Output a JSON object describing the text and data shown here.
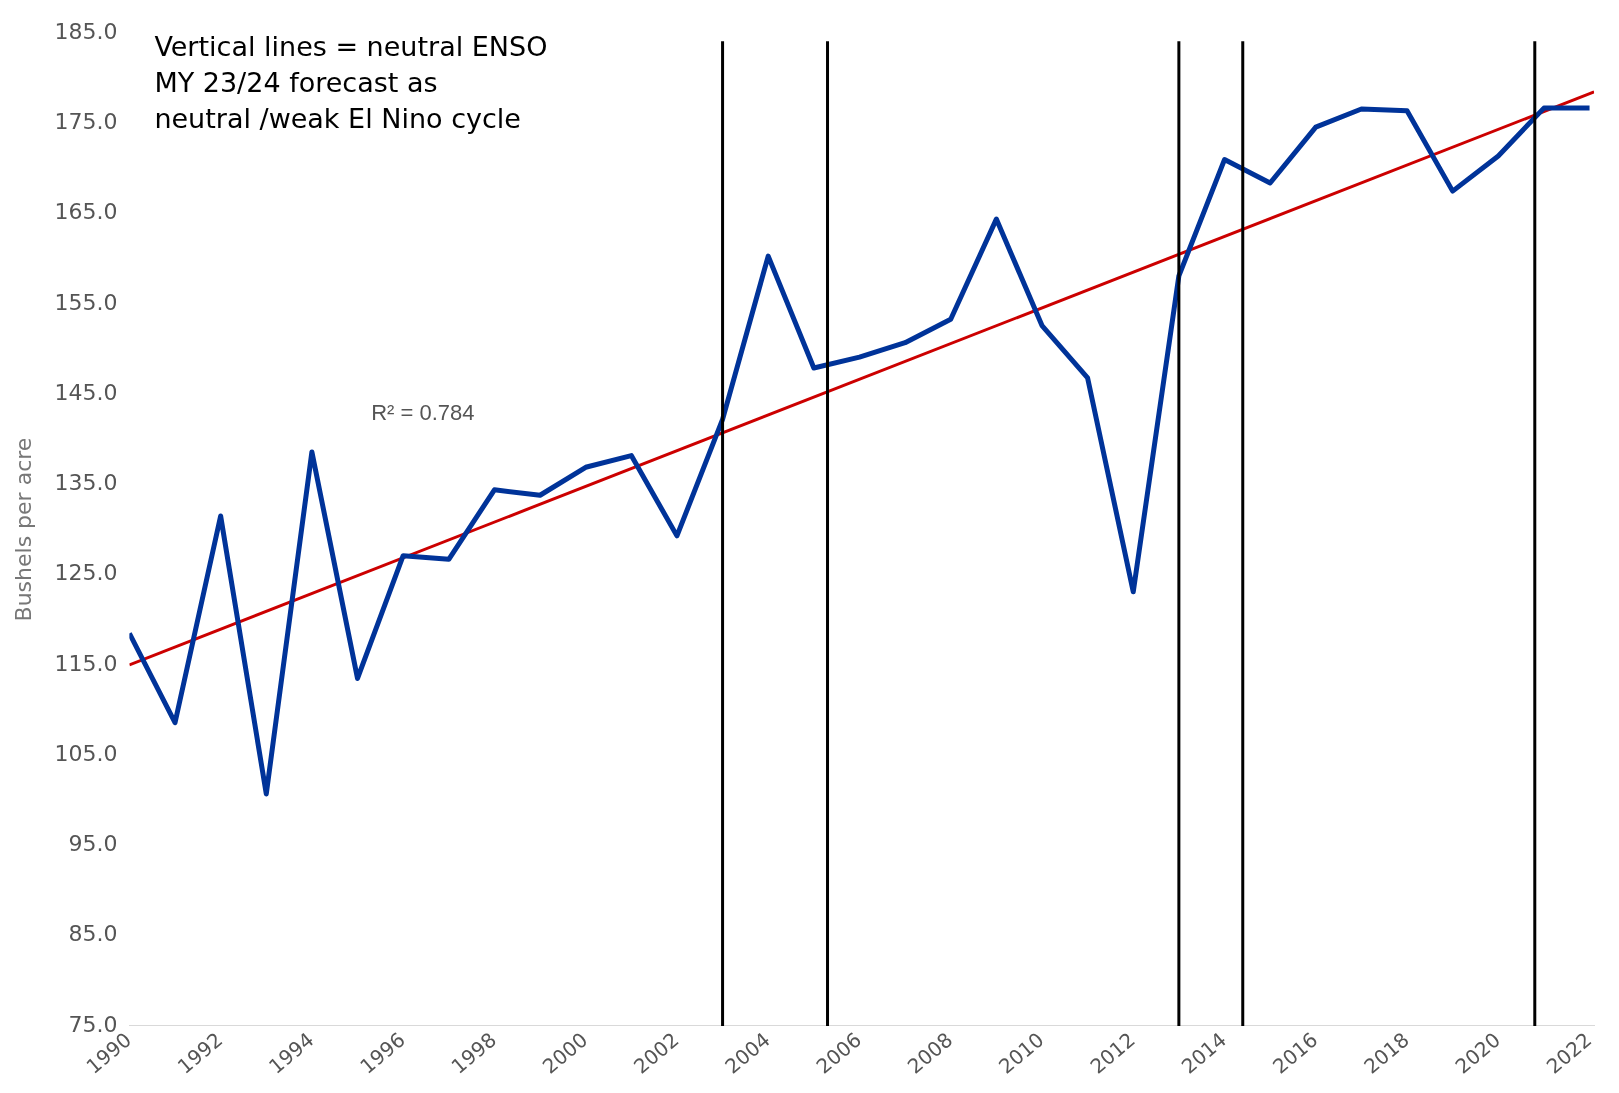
{
  "chart_data": {
    "type": "line",
    "ylabel": "Bushels per acre",
    "x": [
      1990,
      1991,
      1992,
      1993,
      1994,
      1995,
      1996,
      1997,
      1998,
      1999,
      2000,
      2001,
      2002,
      2003,
      2004,
      2005,
      2006,
      2007,
      2008,
      2009,
      2010,
      2011,
      2012,
      2013,
      2014,
      2015,
      2016,
      2017,
      2018,
      2019,
      2020,
      2021,
      2022
    ],
    "series": [
      {
        "color": "#003399",
        "values": [
          118.5,
          108.6,
          131.5,
          100.7,
          138.6,
          113.5,
          127.1,
          126.7,
          134.4,
          133.8,
          136.9,
          138.2,
          129.3,
          142.2,
          160.3,
          147.9,
          149.1,
          150.7,
          153.3,
          164.4,
          152.6,
          146.8,
          123.1,
          158.1,
          171.0,
          168.4,
          174.6,
          176.6,
          176.4,
          167.5,
          171.4,
          176.7,
          176.7
        ]
      },
      {
        "type": "line",
        "color": "#cc0000",
        "x": [
          1990,
          2022.1
        ],
        "values": [
          115,
          178.5
        ]
      }
    ],
    "xlim": [
      1990,
      2022.1
    ],
    "xticks": [
      1990,
      1992,
      1994,
      1996,
      1998,
      2000,
      2002,
      2004,
      2006,
      2008,
      2010,
      2012,
      2014,
      2016,
      2018,
      2020,
      2022
    ],
    "ylim": [
      75,
      185
    ],
    "yticks": [
      {
        "value": 75,
        "label": "75.0"
      },
      {
        "value": 85,
        "label": "85.0"
      },
      {
        "value": 95,
        "label": "95.0"
      },
      {
        "value": 105,
        "label": "105.0"
      },
      {
        "value": 115,
        "label": "115.0"
      },
      {
        "value": 125,
        "label": "125.0"
      },
      {
        "value": 135,
        "label": "135.0"
      },
      {
        "value": 145,
        "label": "145.0"
      },
      {
        "value": 155,
        "label": "155.0"
      },
      {
        "value": 165,
        "label": "165.0"
      },
      {
        "value": 175,
        "label": "175.0"
      },
      {
        "value": 185,
        "label": "185.0"
      }
    ],
    "ref_lines": [
      {
        "axis": "x",
        "value": 2003,
        "color": "#000000"
      },
      {
        "axis": "x",
        "value": 2005.3,
        "color": "#000000"
      },
      {
        "axis": "x",
        "value": 2013,
        "color": "#000000"
      },
      {
        "axis": "x",
        "value": 2014.4,
        "color": "#000000"
      },
      {
        "axis": "x",
        "value": 2020.8,
        "color": "#000000"
      }
    ],
    "annotations": [
      "Vertical lines = neutral ENSO\nMY 23/24 forecast as\nneutral /weak El Nino cycle",
      "R² = 0.784"
    ],
    "grid": false,
    "legend": false,
    "marker": "none",
    "line_style": "solid"
  }
}
